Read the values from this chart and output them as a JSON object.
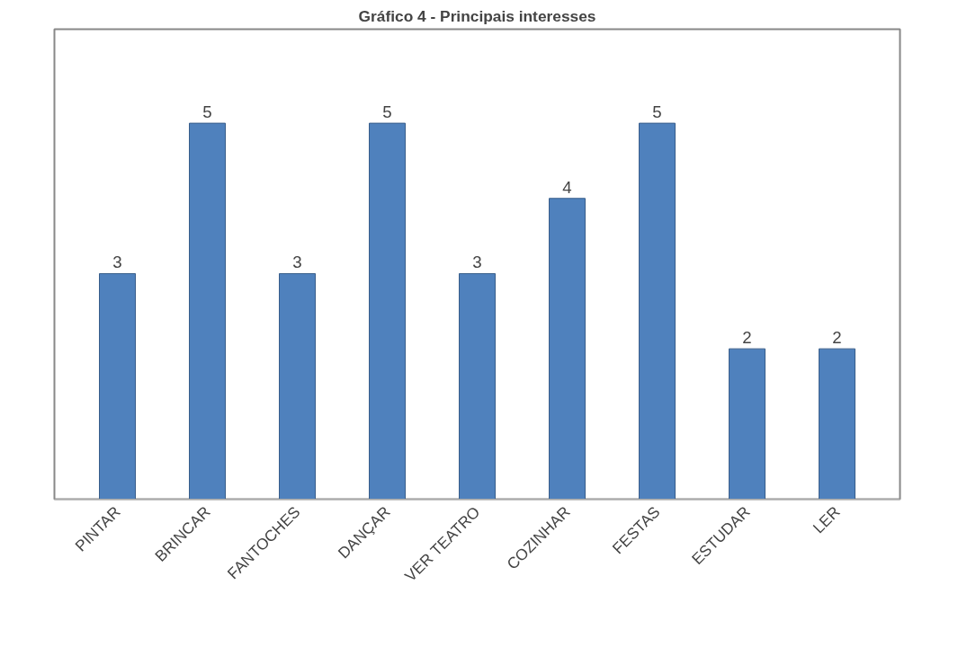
{
  "chart_data": {
    "type": "bar",
    "title": "Gráfico 4 - Principais interesses",
    "categories": [
      "PINTAR",
      "BRINCAR",
      "FANTOCHES",
      "DANÇAR",
      "VER TEATRO",
      "COZINHAR",
      "FESTAS",
      "ESTUDAR",
      "LER"
    ],
    "values": [
      3,
      5,
      3,
      5,
      3,
      4,
      5,
      2,
      2
    ],
    "color": "#4f81bd",
    "data_labels": true,
    "grid": false
  }
}
